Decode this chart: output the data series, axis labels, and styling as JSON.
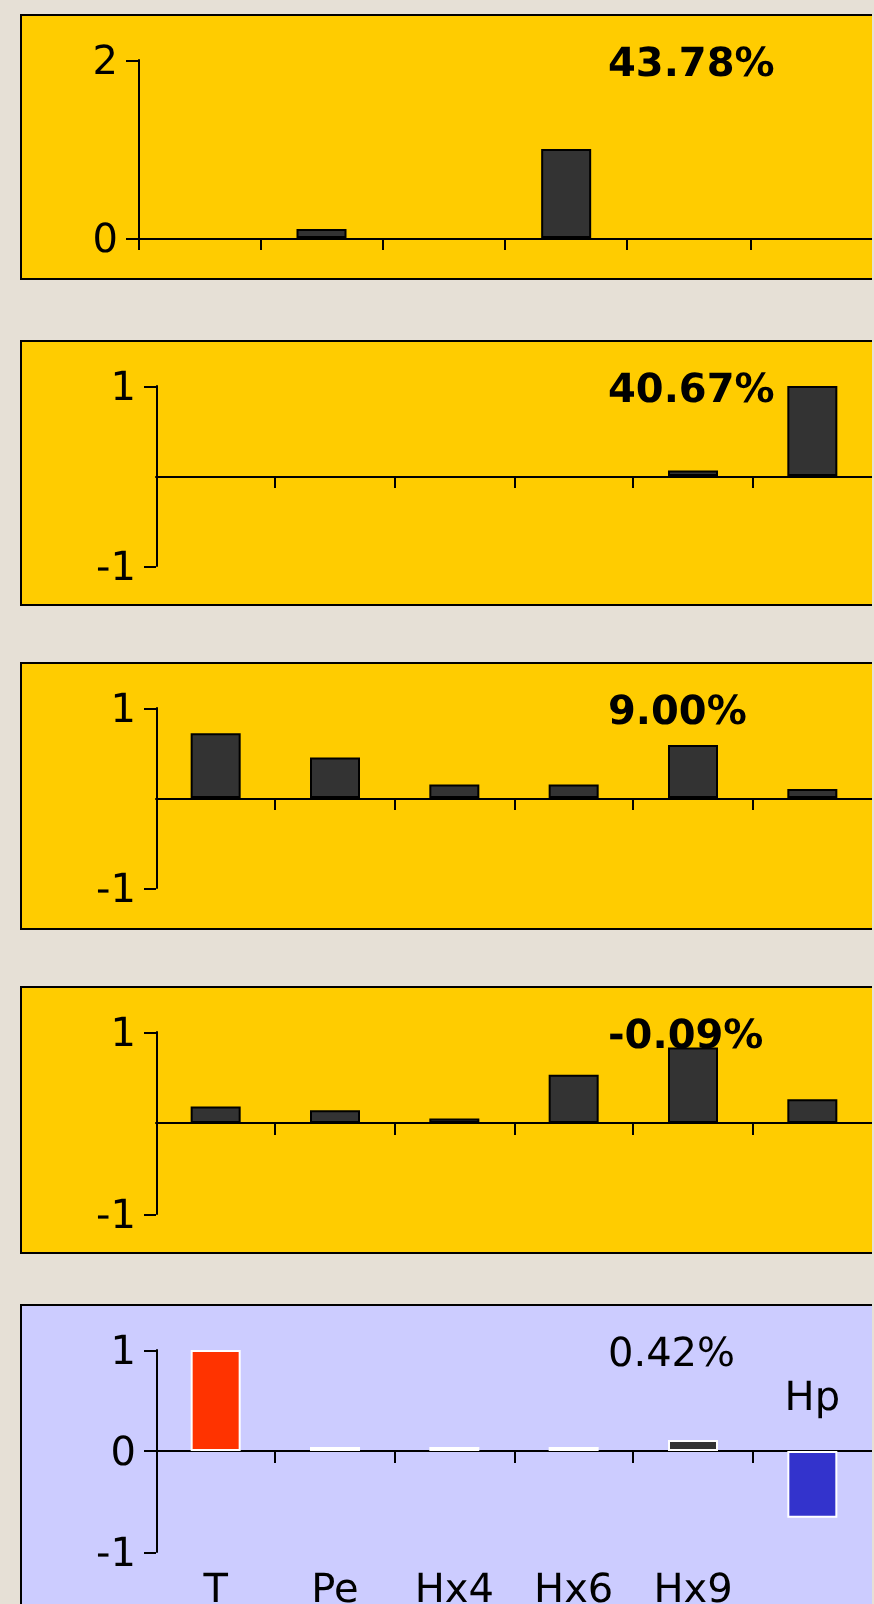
{
  "chart_data": [
    {
      "type": "bar",
      "title": "43.78%",
      "categories": [
        null,
        null,
        null,
        null,
        null,
        null
      ],
      "values": [
        null,
        0.1,
        null,
        1,
        null,
        null
      ],
      "color": "#333333",
      "ylim": [
        0,
        2
      ],
      "yticks": [
        0,
        2
      ],
      "tick_labels": "y"
    },
    {
      "type": "bar",
      "title": "40.67%",
      "categories": [
        null,
        null,
        null,
        null,
        null,
        null
      ],
      "values": [
        null,
        null,
        null,
        null,
        0.06,
        1
      ],
      "color": "#333333",
      "ylim": [
        -1,
        1
      ],
      "yticks": [
        -1,
        1
      ],
      "tick_labels": "y"
    },
    {
      "type": "bar",
      "title": "9.00%",
      "categories": [
        null,
        null,
        null,
        null,
        null,
        null
      ],
      "values": [
        0.72,
        0.45,
        0.15,
        0.15,
        0.59,
        0.1
      ],
      "color": "#333333",
      "ylim": [
        -1,
        1
      ],
      "yticks": [
        -1,
        1
      ],
      "tick_labels": "y"
    },
    {
      "type": "bar",
      "title": "-0.09%",
      "categories": [
        null,
        null,
        null,
        null,
        null,
        null
      ],
      "values": [
        0.18,
        0.14,
        0.05,
        0.53,
        0.83,
        0.26
      ],
      "color": "#333333",
      "ylim": [
        -1,
        1
      ],
      "yticks": [
        -1,
        1
      ],
      "tick_labels": "y"
    },
    {
      "type": "bar",
      "title": "0.42%",
      "categories": [
        "T",
        "Pe",
        "Hx4",
        "Hx6",
        "Hx9",
        "Hp"
      ],
      "values": [
        1,
        0.04,
        0.04,
        0.04,
        0.11,
        -0.66
      ],
      "colors": [
        "#ff3300",
        "#333333",
        "#333333",
        "#333333",
        "#333333",
        "#3333cc"
      ],
      "ylim": [
        -1,
        1
      ],
      "yticks": [
        -1,
        0,
        1
      ]
    }
  ]
}
